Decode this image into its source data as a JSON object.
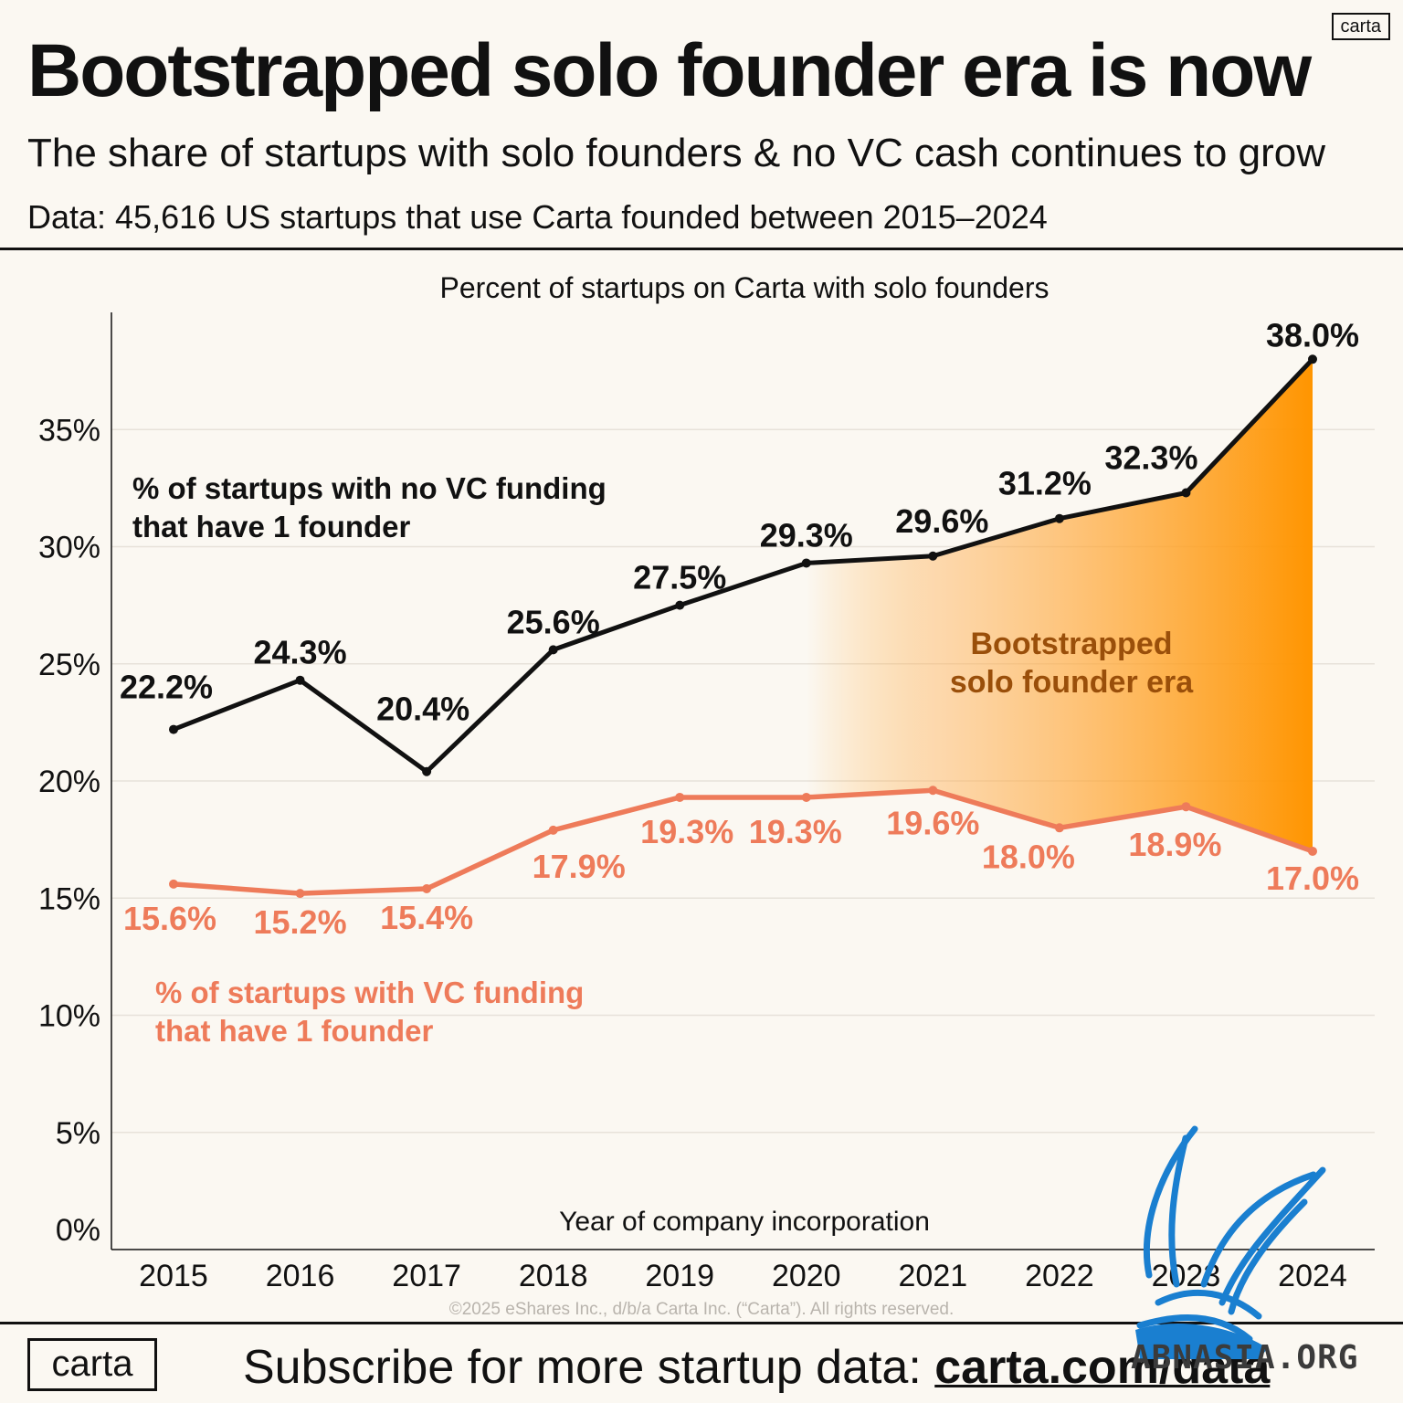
{
  "header": {
    "title": "Bootstrapped solo founder era is now",
    "brand_badge": "carta",
    "subtitle": "The share of startups with solo founders & no VC cash continues to grow",
    "source": "Data: 45,616 US startups that use Carta founded between 2015–2024"
  },
  "chart_data": {
    "type": "line",
    "title": "Percent of startups on Carta with solo founders",
    "xlabel": "Year of company incorporation",
    "ylabel": "",
    "x": [
      "2015",
      "2016",
      "2017",
      "2018",
      "2019",
      "2020",
      "2021",
      "2022",
      "2023",
      "2024"
    ],
    "yticks": [
      "0%",
      "5%",
      "10%",
      "15%",
      "20%",
      "25%",
      "30%",
      "35%"
    ],
    "ylim": [
      0,
      40
    ],
    "grid": true,
    "series": [
      {
        "name": "% of startups with no VC funding that have 1 founder",
        "name_lines": [
          "% of startups with no VC funding",
          "that have 1 founder"
        ],
        "values": [
          22.2,
          24.3,
          20.4,
          25.6,
          27.5,
          29.3,
          29.6,
          31.2,
          32.3,
          38.0
        ],
        "labels": [
          "22.2%",
          "24.3%",
          "20.4%",
          "25.6%",
          "27.5%",
          "29.3%",
          "29.6%",
          "31.2%",
          "32.3%",
          "38.0%"
        ],
        "color": "#111111"
      },
      {
        "name": "% of startups with VC funding that have 1 founder",
        "name_lines": [
          "% of startups with VC funding",
          "that have 1 founder"
        ],
        "values": [
          15.6,
          15.2,
          15.4,
          17.9,
          19.3,
          19.3,
          19.6,
          18.0,
          18.9,
          17.0
        ],
        "labels": [
          "15.6%",
          "15.2%",
          "15.4%",
          "17.9%",
          "19.3%",
          "19.3%",
          "19.6%",
          "18.0%",
          "18.9%",
          "17.0%"
        ],
        "color": "#ee7b5a"
      }
    ],
    "annotation": {
      "lines": [
        "Bootstrapped",
        "solo founder era"
      ],
      "color": "#9a4f0a",
      "fill_color": "#ff9500",
      "from_year": "2020",
      "to_year": "2024"
    }
  },
  "copyright": "©2025 eShares Inc., d/b/a Carta Inc. (“Carta”). All rights reserved.",
  "footer": {
    "logo": "carta",
    "cta": "Subscribe for more startup data: ",
    "link": "carta.com/data"
  },
  "watermark": {
    "text": "ABNASIA.ORG",
    "icon": "bird-icon",
    "color": "#1a7fd0"
  }
}
